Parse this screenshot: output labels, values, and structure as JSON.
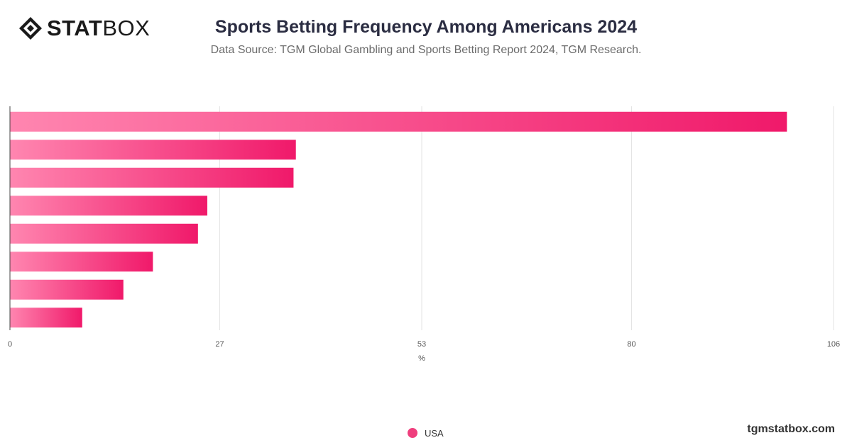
{
  "header": {
    "logo_bold": "STAT",
    "logo_light": "BOX",
    "title": "Sports Betting Frequency Among Americans 2024",
    "subtitle": "Data Source: TGM Global Gambling and Sports Betting Report 2024, TGM Research."
  },
  "chart_data": {
    "type": "bar",
    "orientation": "horizontal",
    "title": "Sports Betting Frequency Among Americans 2024",
    "subtitle": "Data Source: TGM Global Gambling and Sports Betting Report 2024, TGM Research.",
    "xlabel": "%",
    "ylabel": "",
    "xlim": [
      0,
      106
    ],
    "ticks": [
      0,
      27,
      53,
      80,
      106
    ],
    "grid": true,
    "legend_position": "bottom-center",
    "series": [
      {
        "name": "USA",
        "color": "#ef3e7d",
        "values": [
          100,
          36.8,
          36.5,
          25.4,
          24.2,
          18.4,
          14.6,
          9.3
        ]
      }
    ]
  },
  "legend": {
    "items": [
      {
        "label": "USA",
        "color": "#ef3e7d"
      }
    ]
  },
  "footer": {
    "site": "tgmstatbox.com"
  }
}
